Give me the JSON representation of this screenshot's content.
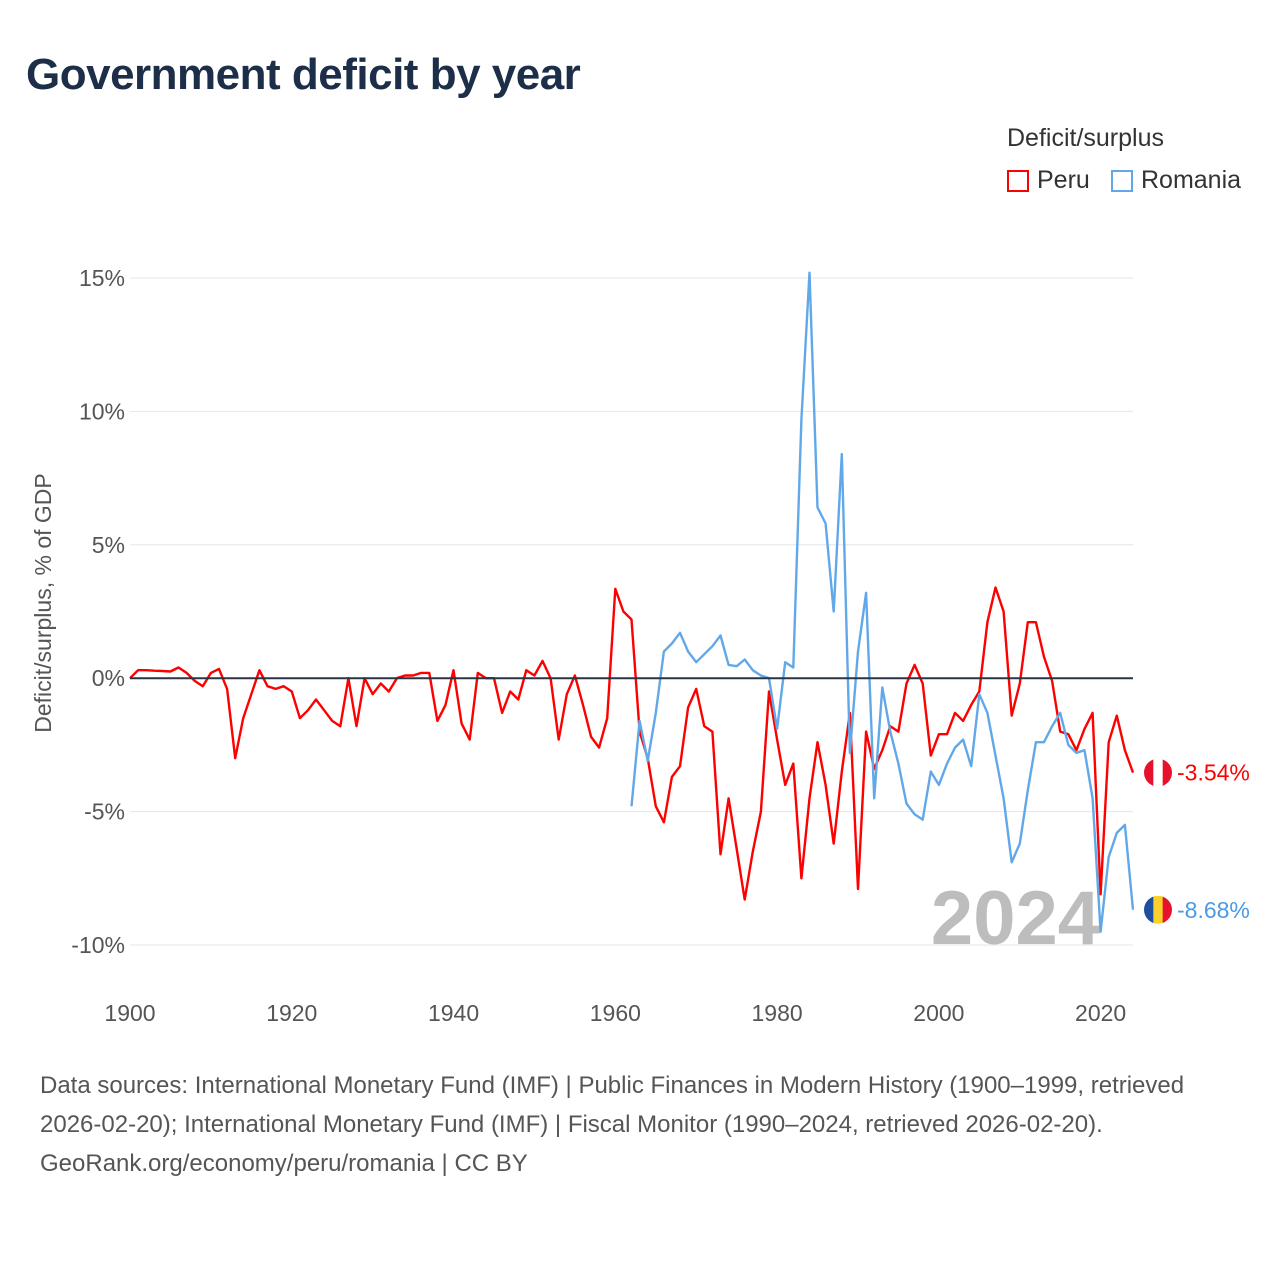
{
  "title": "Government deficit by year",
  "legend_title": "Deficit/surplus",
  "footer": {
    "sources": "Data sources: International Monetary Fund (IMF) | Public Finances in Modern History (1900–1999, retrieved 2026-02-20); International Monetary Fund (IMF) | Fiscal Monitor (1990–2024, retrieved 2026-02-20).",
    "credit": "GeoRank.org/economy/peru/romania | CC BY"
  },
  "chart_data": {
    "type": "line",
    "title": "Government deficit by year",
    "xlabel": "",
    "ylabel": "Deficit/surplus, % of GDP",
    "xlim": [
      1900,
      2024
    ],
    "ylim": [
      -10,
      15
    ],
    "xticks": [
      1900,
      1920,
      1940,
      1960,
      1980,
      2000,
      2020
    ],
    "xtick_labels": [
      "1900",
      "1920",
      "1940",
      "1960",
      "1980",
      "2000",
      "2020"
    ],
    "yticks": [
      15,
      10,
      5,
      0,
      -5,
      -10
    ],
    "ytick_labels": [
      "15%",
      "10%",
      "5%",
      "0%",
      "-5%",
      "-10%"
    ],
    "grid": true,
    "legend_position": "top-right",
    "watermark_year": "2024",
    "series": [
      {
        "name": "Peru",
        "color": "#ff0000",
        "end_label": "-3.54%",
        "x_start": 1900,
        "values": [
          0,
          0.3,
          0.3,
          0.28,
          0.27,
          0.25,
          0.4,
          0.2,
          -0.1,
          -0.3,
          0.2,
          0.35,
          -0.4,
          -3.0,
          -1.5,
          -0.6,
          0.3,
          -0.3,
          -0.4,
          -0.3,
          -0.5,
          -1.5,
          -1.2,
          -0.8,
          -1.2,
          -1.6,
          -1.8,
          0,
          -1.8,
          0,
          -0.6,
          -0.2,
          -0.5,
          0,
          0.1,
          0.1,
          0.2,
          0.2,
          -1.6,
          -1.0,
          0.3,
          -1.7,
          -2.3,
          0.2,
          0,
          0,
          -1.3,
          -0.5,
          -0.8,
          0.3,
          0.1,
          0.65,
          0,
          -2.3,
          -0.6,
          0.1,
          -1.0,
          -2.2,
          -2.6,
          -1.5,
          3.35,
          2.5,
          2.2,
          -2.0,
          -3.0,
          -4.8,
          -5.4,
          -3.7,
          -3.3,
          -1.1,
          -0.4,
          -1.8,
          -2.0,
          -6.6,
          -4.5,
          -6.4,
          -8.3,
          -6.5,
          -5.0,
          -0.5,
          -2.3,
          -4.0,
          -3.2,
          -7.5,
          -4.5,
          -2.4,
          -4.0,
          -6.2,
          -3.5,
          -1.3,
          -7.9,
          -2.0,
          -3.4,
          -2.7,
          -1.8,
          -2.0,
          -0.2,
          0.5,
          -0.2,
          -2.9,
          -2.1,
          -2.1,
          -1.3,
          -1.6,
          -1.0,
          -0.5,
          2.1,
          3.4,
          2.5,
          -1.4,
          -0.2,
          2.1,
          2.1,
          0.8,
          -0.1,
          -2.0,
          -2.1,
          -2.7,
          -1.9,
          -1.3,
          -8.1,
          -2.4,
          -1.4,
          -2.7,
          -3.54
        ]
      },
      {
        "name": "Romania",
        "color": "#62a8e8",
        "end_label": "-8.68%",
        "x_start": 1962,
        "values": [
          -4.8,
          -1.6,
          -3.1,
          -1.3,
          1.0,
          1.3,
          1.7,
          1.0,
          0.6,
          0.9,
          1.2,
          1.6,
          0.5,
          0.45,
          0.7,
          0.3,
          0.1,
          0,
          -1.9,
          0.6,
          0.4,
          9.7,
          15.2,
          6.4,
          5.8,
          2.5,
          8.4,
          -2.8,
          1.0,
          3.2,
          -4.5,
          -0.35,
          -2.0,
          -3.2,
          -4.7,
          -5.1,
          -5.3,
          -3.5,
          -4.0,
          -3.2,
          -2.6,
          -2.3,
          -3.3,
          -0.6,
          -1.3,
          -2.9,
          -4.5,
          -6.9,
          -6.2,
          -4.2,
          -2.4,
          -2.4,
          -1.8,
          -1.3,
          -2.5,
          -2.8,
          -2.7,
          -4.5,
          -9.5,
          -6.7,
          -5.8,
          -5.5,
          -8.68
        ]
      }
    ]
  }
}
